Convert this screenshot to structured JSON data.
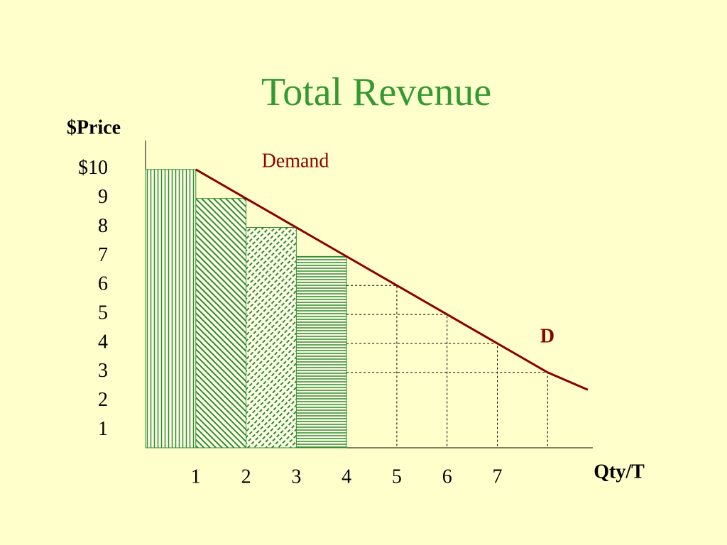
{
  "chart_data": {
    "type": "line",
    "title": "Total Revenue",
    "y_label": "$Price",
    "x_label": "Qty/T",
    "annotation": "D",
    "xlim": [
      0,
      8.9
    ],
    "ylim": [
      0.4,
      10.95
    ],
    "xticks": [
      1,
      2,
      3,
      4,
      5,
      6,
      7
    ],
    "yticks": [
      {
        "value": 10,
        "label": "$10"
      },
      9,
      8,
      7,
      6,
      5,
      4,
      3,
      2,
      1
    ],
    "series": [
      {
        "name": "Demand",
        "color": "#8b0000",
        "x": [
          1,
          2,
          3,
          4,
          5,
          6,
          7,
          8,
          8.8
        ],
        "values": [
          10,
          9,
          8,
          7,
          6,
          5,
          4,
          3,
          2.4
        ]
      }
    ],
    "revenue_areas": {
      "color": "#2e8b2e",
      "patterns": [
        "vertical",
        "diagonal",
        "dashed-diagonal",
        "horizontal"
      ],
      "x": [
        1,
        2,
        3,
        4
      ],
      "values": [
        10,
        9,
        8,
        7
      ]
    }
  }
}
